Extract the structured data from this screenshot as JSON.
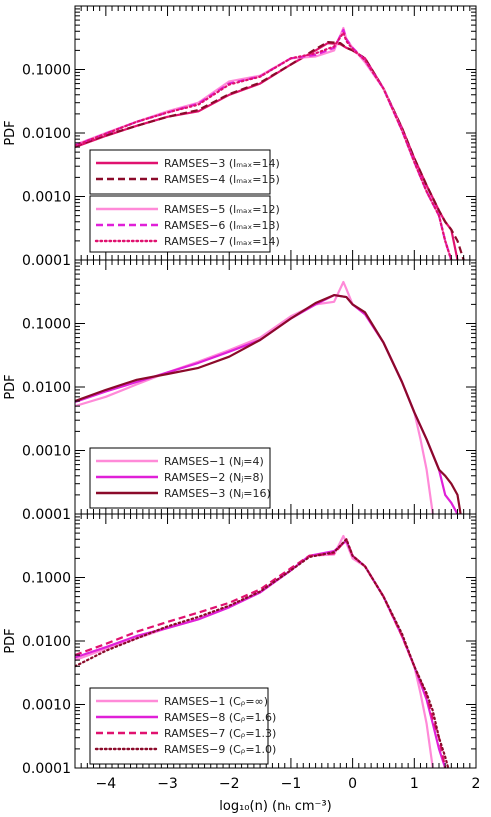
{
  "colors": {
    "pink": "#ff8ad8",
    "magenta": "#e020d8",
    "crimson": "#e0116f",
    "darkred": "#8b0a2a"
  },
  "chart_data": [
    {
      "type": "line",
      "panel": "top",
      "xlim": [
        -4.5,
        2
      ],
      "ylim": [
        0.0001,
        1
      ],
      "yscale": "log",
      "ylabel": "PDF",
      "xlabel": "",
      "yticks": [
        "0.0001",
        "0.0010",
        "0.0100",
        "0.1000"
      ],
      "xticks": [],
      "legend_groups": [
        [
          "RAMSES−3 (lₘₐₓ=14)",
          "RAMSES−4 (lₘₐₓ=15)"
        ],
        [
          "RAMSES−5 (lₘₐₓ=12)",
          "RAMSES−6 (lₘₐₓ=13)",
          "RAMSES−7 (lₘₐₓ=14)"
        ]
      ],
      "series": [
        {
          "name": "RAMSES−3 (lₘₐₓ=14)",
          "color": "#e0116f",
          "dash": "solid",
          "x": [
            -4.5,
            -4,
            -3.5,
            -3,
            -2.5,
            -2,
            -1.5,
            -1,
            -0.6,
            -0.4,
            -0.2,
            -0.1,
            0,
            0.2,
            0.5,
            0.8,
            1.0,
            1.2,
            1.4,
            1.5,
            1.6,
            1.7
          ],
          "y": [
            0.006,
            0.009,
            0.013,
            0.018,
            0.022,
            0.04,
            0.06,
            0.12,
            0.2,
            0.26,
            0.25,
            0.22,
            0.2,
            0.15,
            0.05,
            0.012,
            0.004,
            0.0015,
            0.0006,
            0.0004,
            0.0003,
            0.0001
          ]
        },
        {
          "name": "RAMSES−4 (lₘₐₓ=15)",
          "color": "#8b0a2a",
          "dash": "dash",
          "x": [
            -4.5,
            -4,
            -3.5,
            -3,
            -2.5,
            -2,
            -1.5,
            -1,
            -0.6,
            -0.4,
            -0.2,
            -0.1,
            0,
            0.2,
            0.5,
            0.8,
            1.0,
            1.2,
            1.4,
            1.5,
            1.6,
            1.7,
            1.8
          ],
          "y": [
            0.0062,
            0.0092,
            0.013,
            0.018,
            0.023,
            0.041,
            0.062,
            0.12,
            0.21,
            0.27,
            0.26,
            0.22,
            0.2,
            0.15,
            0.05,
            0.012,
            0.004,
            0.0015,
            0.0006,
            0.0004,
            0.0003,
            0.0002,
            0.0001
          ]
        },
        {
          "name": "RAMSES−5 (lₘₐₓ=12)",
          "color": "#ff8ad8",
          "dash": "solid",
          "x": [
            -4.5,
            -4,
            -3.5,
            -3,
            -2.5,
            -2,
            -1.5,
            -1,
            -0.6,
            -0.3,
            -0.15,
            -0.1,
            0,
            0.2,
            0.5,
            0.8,
            1.0,
            1.2,
            1.4,
            1.5,
            1.6
          ],
          "y": [
            0.0065,
            0.01,
            0.015,
            0.022,
            0.03,
            0.065,
            0.08,
            0.15,
            0.16,
            0.2,
            0.45,
            0.3,
            0.22,
            0.13,
            0.05,
            0.011,
            0.0035,
            0.0012,
            0.0005,
            0.0002,
            0.0001
          ]
        },
        {
          "name": "RAMSES−6 (lₘₐₓ=13)",
          "color": "#e020d8",
          "dash": "dash",
          "x": [
            -4.5,
            -4,
            -3.5,
            -3,
            -2.5,
            -2,
            -1.5,
            -1,
            -0.6,
            -0.3,
            -0.15,
            -0.1,
            0,
            0.2,
            0.5,
            0.8,
            1.0,
            1.2,
            1.4,
            1.5,
            1.6
          ],
          "y": [
            0.0064,
            0.0098,
            0.015,
            0.021,
            0.029,
            0.06,
            0.078,
            0.15,
            0.17,
            0.22,
            0.42,
            0.3,
            0.22,
            0.14,
            0.05,
            0.011,
            0.0035,
            0.0012,
            0.0005,
            0.0002,
            0.0001
          ]
        },
        {
          "name": "RAMSES−7 (lₘₐₓ=14)",
          "color": "#e0116f",
          "dash": "dot",
          "x": [
            -4.5,
            -4,
            -3.5,
            -3,
            -2.5,
            -2,
            -1.5,
            -1,
            -0.6,
            -0.3,
            -0.15,
            -0.1,
            0,
            0.2,
            0.5,
            0.8,
            1.0,
            1.2,
            1.4,
            1.5,
            1.6
          ],
          "y": [
            0.0063,
            0.0097,
            0.015,
            0.021,
            0.028,
            0.058,
            0.077,
            0.15,
            0.18,
            0.23,
            0.38,
            0.28,
            0.21,
            0.14,
            0.05,
            0.011,
            0.0035,
            0.0012,
            0.0005,
            0.0002,
            0.0001
          ]
        }
      ]
    },
    {
      "type": "line",
      "panel": "middle",
      "xlim": [
        -4.5,
        2
      ],
      "ylim": [
        0.0001,
        1
      ],
      "yscale": "log",
      "ylabel": "PDF",
      "xlabel": "",
      "yticks": [
        "0.0001",
        "0.0010",
        "0.0100",
        "0.1000"
      ],
      "xticks": [],
      "legend_groups": [
        [
          "RAMSES−1 (Nⱼ=4)",
          "RAMSES−2 (Nⱼ=8)",
          "RAMSES−3 (Nⱼ=16)"
        ]
      ],
      "series": [
        {
          "name": "RAMSES−1 (Nⱼ=4)",
          "color": "#ff8ad8",
          "dash": "solid",
          "x": [
            -4.5,
            -4,
            -3.5,
            -3,
            -2.5,
            -2,
            -1.5,
            -1,
            -0.6,
            -0.3,
            -0.15,
            -0.1,
            0,
            0.2,
            0.5,
            0.8,
            1.0,
            1.1,
            1.2,
            1.3
          ],
          "y": [
            0.005,
            0.007,
            0.011,
            0.017,
            0.025,
            0.038,
            0.06,
            0.13,
            0.2,
            0.22,
            0.45,
            0.35,
            0.2,
            0.14,
            0.05,
            0.012,
            0.004,
            0.0015,
            0.0005,
            0.0001
          ]
        },
        {
          "name": "RAMSES−2 (Nⱼ=8)",
          "color": "#e020d8",
          "dash": "solid",
          "x": [
            -4.5,
            -4,
            -3.5,
            -3,
            -2.5,
            -2,
            -1.5,
            -1,
            -0.6,
            -0.3,
            -0.1,
            0,
            0.2,
            0.5,
            0.8,
            1.0,
            1.2,
            1.4,
            1.5,
            1.6,
            1.7
          ],
          "y": [
            0.0058,
            0.0085,
            0.012,
            0.017,
            0.024,
            0.036,
            0.055,
            0.12,
            0.2,
            0.28,
            0.26,
            0.2,
            0.14,
            0.05,
            0.012,
            0.004,
            0.0015,
            0.0005,
            0.0002,
            0.00015,
            0.0001
          ]
        },
        {
          "name": "RAMSES−3 (Nⱼ=16)",
          "color": "#8b0a2a",
          "dash": "solid",
          "x": [
            -4.5,
            -4,
            -3.5,
            -3,
            -2.5,
            -2,
            -1.5,
            -1,
            -0.6,
            -0.3,
            -0.1,
            0,
            0.2,
            0.5,
            0.8,
            1.0,
            1.2,
            1.4,
            1.5,
            1.6,
            1.7,
            1.75
          ],
          "y": [
            0.006,
            0.009,
            0.013,
            0.016,
            0.02,
            0.03,
            0.055,
            0.12,
            0.21,
            0.28,
            0.26,
            0.2,
            0.15,
            0.05,
            0.012,
            0.004,
            0.0015,
            0.0005,
            0.0004,
            0.0003,
            0.0002,
            0.0001
          ]
        }
      ]
    },
    {
      "type": "line",
      "panel": "bottom",
      "xlim": [
        -4.5,
        2
      ],
      "ylim": [
        0.0001,
        1
      ],
      "yscale": "log",
      "ylabel": "PDF",
      "xlabel": "log₁₀(n)  (nₕ cm⁻³)",
      "yticks": [
        "0.0001",
        "0.0010",
        "0.0100",
        "0.1000"
      ],
      "xticks": [
        "−4",
        "−3",
        "−2",
        "−1",
        "0",
        "1",
        "2"
      ],
      "legend_groups": [
        [
          "RAMSES−1 (Cᵨ=∞)",
          "RAMSES−8 (Cᵨ=1.6)",
          "RAMSES−7 (Cᵨ=1.3)",
          "RAMSES−9 (Cᵨ=1.0)"
        ]
      ],
      "series": [
        {
          "name": "RAMSES−1 (Cᵨ=∞)",
          "color": "#ff8ad8",
          "dash": "solid",
          "x": [
            -4.5,
            -4,
            -3.5,
            -3,
            -2.5,
            -2,
            -1.5,
            -1,
            -0.7,
            -0.3,
            -0.15,
            -0.1,
            0,
            0.2,
            0.5,
            0.8,
            1.0,
            1.1,
            1.2,
            1.3
          ],
          "y": [
            0.005,
            0.0075,
            0.011,
            0.016,
            0.022,
            0.035,
            0.06,
            0.13,
            0.22,
            0.23,
            0.45,
            0.35,
            0.2,
            0.15,
            0.05,
            0.012,
            0.004,
            0.0015,
            0.0005,
            0.0001
          ]
        },
        {
          "name": "RAMSES−8 (Cᵨ=1.6)",
          "color": "#e020d8",
          "dash": "solid",
          "x": [
            -4.5,
            -4,
            -3.5,
            -3,
            -2.5,
            -2,
            -1.5,
            -1,
            -0.7,
            -0.3,
            -0.1,
            0,
            0.2,
            0.5,
            0.8,
            1.0,
            1.2,
            1.3,
            1.4,
            1.5
          ],
          "y": [
            0.0055,
            0.008,
            0.012,
            0.016,
            0.022,
            0.034,
            0.058,
            0.13,
            0.22,
            0.26,
            0.38,
            0.22,
            0.15,
            0.05,
            0.012,
            0.004,
            0.0012,
            0.0005,
            0.0002,
            0.0001
          ]
        },
        {
          "name": "RAMSES−7 (Cᵨ=1.3)",
          "color": "#e0116f",
          "dash": "dash",
          "x": [
            -4.5,
            -4,
            -3.5,
            -3,
            -2.5,
            -2,
            -1.5,
            -1,
            -0.7,
            -0.3,
            -0.1,
            0,
            0.2,
            0.5,
            0.8,
            1.0,
            1.2,
            1.3,
            1.4,
            1.5
          ],
          "y": [
            0.006,
            0.009,
            0.014,
            0.02,
            0.028,
            0.04,
            0.065,
            0.14,
            0.22,
            0.24,
            0.4,
            0.22,
            0.15,
            0.05,
            0.012,
            0.004,
            0.0014,
            0.0006,
            0.0003,
            0.0001
          ]
        },
        {
          "name": "RAMSES−9 (Cᵨ=1.0)",
          "color": "#8b0a2a",
          "dash": "dot",
          "x": [
            -4.5,
            -4,
            -3.5,
            -3,
            -2.5,
            -2,
            -1.5,
            -1,
            -0.7,
            -0.3,
            -0.1,
            0,
            0.2,
            0.5,
            0.8,
            1.0,
            1.2,
            1.3,
            1.4,
            1.5,
            1.55
          ],
          "y": [
            0.004,
            0.007,
            0.011,
            0.017,
            0.024,
            0.036,
            0.06,
            0.13,
            0.21,
            0.25,
            0.4,
            0.22,
            0.15,
            0.05,
            0.013,
            0.004,
            0.0015,
            0.0008,
            0.0003,
            0.00015,
            0.0001
          ]
        }
      ]
    }
  ]
}
